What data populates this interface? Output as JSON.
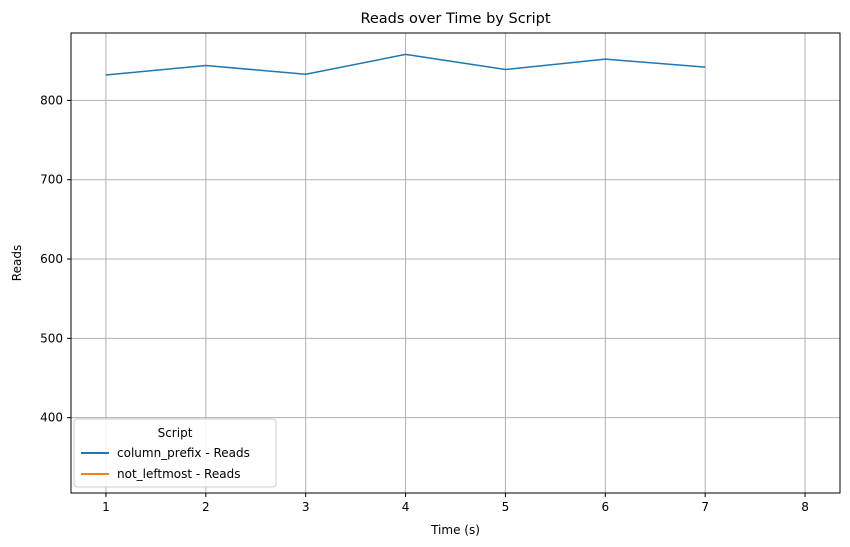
{
  "chart_data": {
    "type": "line",
    "title": "Reads over Time by Script",
    "xlabel": "Time (s)",
    "ylabel": "Reads",
    "xlim": [
      0.65,
      8.35
    ],
    "ylim": [
      305,
      885
    ],
    "xticks": [
      1,
      2,
      3,
      4,
      5,
      6,
      7,
      8
    ],
    "yticks": [
      400,
      500,
      600,
      700,
      800
    ],
    "grid": true,
    "legend": {
      "title": "Script",
      "placement": "lower-left"
    },
    "series": [
      {
        "name": "column_prefix - Reads",
        "color": "#1f77b4",
        "x": [
          1,
          2,
          3,
          4,
          5,
          6,
          7
        ],
        "y": [
          832,
          844,
          833,
          858,
          839,
          852,
          842
        ]
      },
      {
        "name": "not_leftmost - Reads",
        "color": "#ff7f0e",
        "x": [],
        "y": []
      }
    ]
  }
}
